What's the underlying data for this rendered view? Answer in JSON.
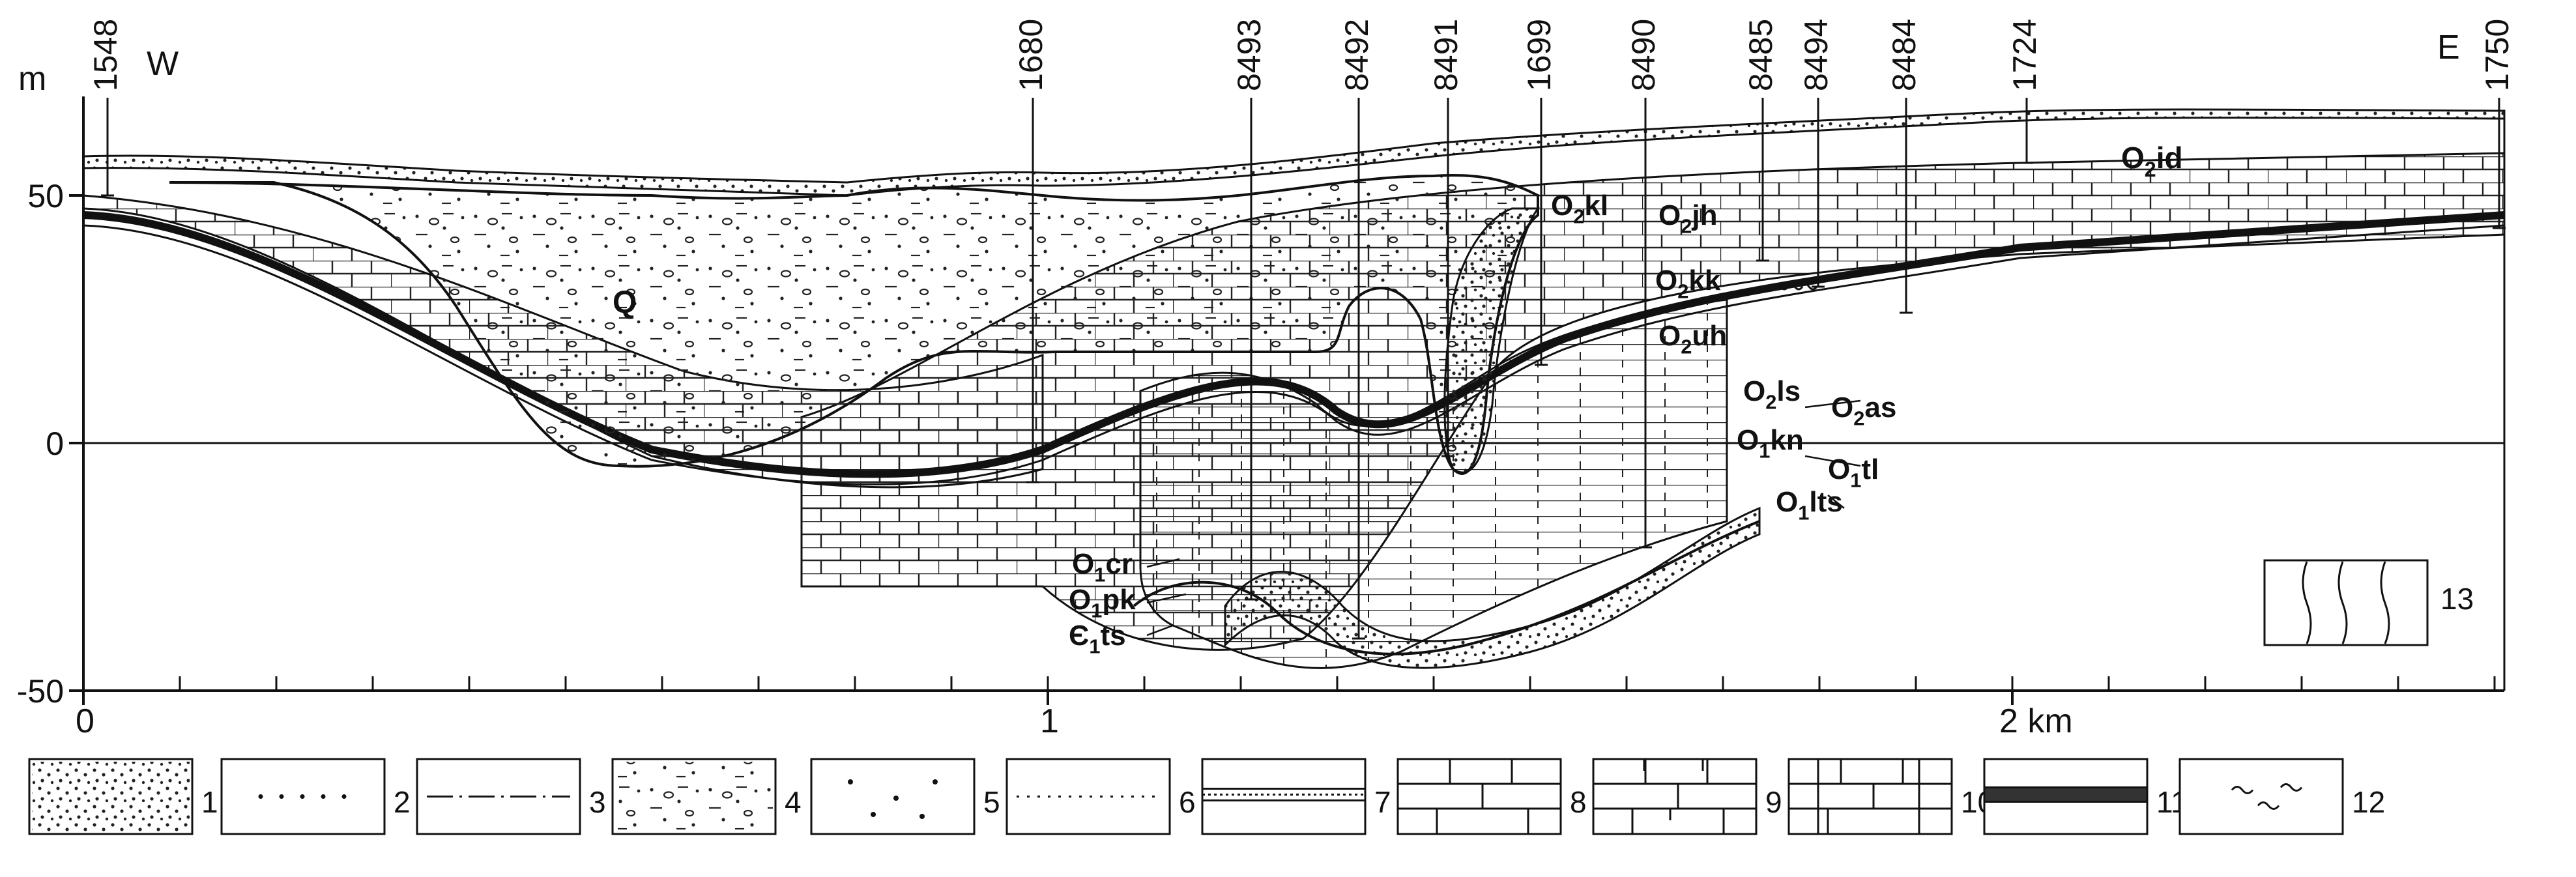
{
  "axis": {
    "unit": "m",
    "y_ticks": [
      "50",
      "0",
      "-50"
    ],
    "x_ticks": [
      "0",
      "1",
      "2 km"
    ]
  },
  "direction": {
    "west": "W",
    "east": "E"
  },
  "wells": [
    "1548",
    "1680",
    "8493",
    "8492",
    "8491",
    "1699",
    "8490",
    "8485",
    "8494",
    "8484",
    "1724",
    "1750"
  ],
  "units": {
    "Q": "Q",
    "O2id": [
      "O",
      "2",
      "id"
    ],
    "O2kl": [
      "O",
      "2",
      "kl"
    ],
    "O2jh": [
      "O",
      "2",
      "jh"
    ],
    "O2kk": [
      "O",
      "2",
      "kk"
    ],
    "O2uh": [
      "O",
      "2",
      "uh"
    ],
    "O2ls": [
      "O",
      "2",
      "ls"
    ],
    "O2as": [
      "O",
      "2",
      "as"
    ],
    "O1kn": [
      "O",
      "1",
      "kn"
    ],
    "O1tl": [
      "O",
      "1",
      "tl"
    ],
    "O1lts": [
      "O",
      "1",
      "lts"
    ],
    "O1cr": [
      "O",
      "1",
      "cr"
    ],
    "O1pk": [
      "O",
      "1",
      "pk"
    ],
    "E1ts": [
      "Є",
      "1",
      "ts"
    ]
  },
  "legend": [
    "1",
    "2",
    "3",
    "4",
    "5",
    "6",
    "7",
    "8",
    "9",
    "10",
    "11",
    "12",
    "13"
  ]
}
